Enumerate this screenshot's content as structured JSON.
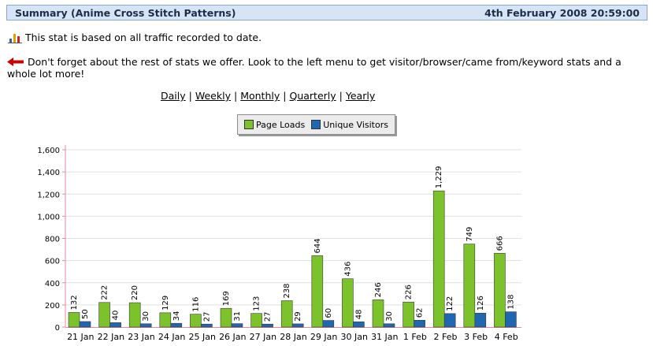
{
  "header": {
    "title": "Summary (Anime Cross Stitch Patterns)",
    "datetime": "4th February 2008 20:59:00"
  },
  "notice": {
    "stat_icon": "bar-chart-icon",
    "stat_text": "This stat is based on all traffic recorded to date.",
    "arrow_icon": "left-arrow-icon",
    "more_text": "Don't forget about the rest of stats we offer. Look to the left menu to get visitor/browser/came from/keyword stats and a whole lot more!"
  },
  "periods": [
    "Daily",
    "Weekly",
    "Monthly",
    "Quarterly",
    "Yearly"
  ],
  "colors": {
    "page_loads": "#7cc22a",
    "unique_visitors": "#1f67b0",
    "header_bg": "#d6e4f5",
    "arrow": "#cc0000"
  },
  "chart_data": {
    "type": "bar",
    "categories": [
      "21 Jan",
      "22 Jan",
      "23 Jan",
      "24 Jan",
      "25 Jan",
      "26 Jan",
      "27 Jan",
      "28 Jan",
      "29 Jan",
      "30 Jan",
      "31 Jan",
      "1 Feb",
      "2 Feb",
      "3 Feb",
      "4 Feb"
    ],
    "series": [
      {
        "name": "Page Loads",
        "values": [
          132,
          222,
          220,
          129,
          116,
          169,
          123,
          238,
          644,
          436,
          246,
          226,
          1229,
          749,
          666
        ]
      },
      {
        "name": "Unique Visitors",
        "values": [
          50,
          40,
          30,
          34,
          27,
          31,
          27,
          29,
          60,
          48,
          30,
          62,
          122,
          126,
          138
        ]
      }
    ],
    "ylim": [
      0,
      1600
    ],
    "yticks": [
      "0",
      "200",
      "400",
      "600",
      "800",
      "1,000",
      "1,200",
      "1,400",
      "1,600"
    ],
    "grid": true,
    "legend": "top-center"
  }
}
